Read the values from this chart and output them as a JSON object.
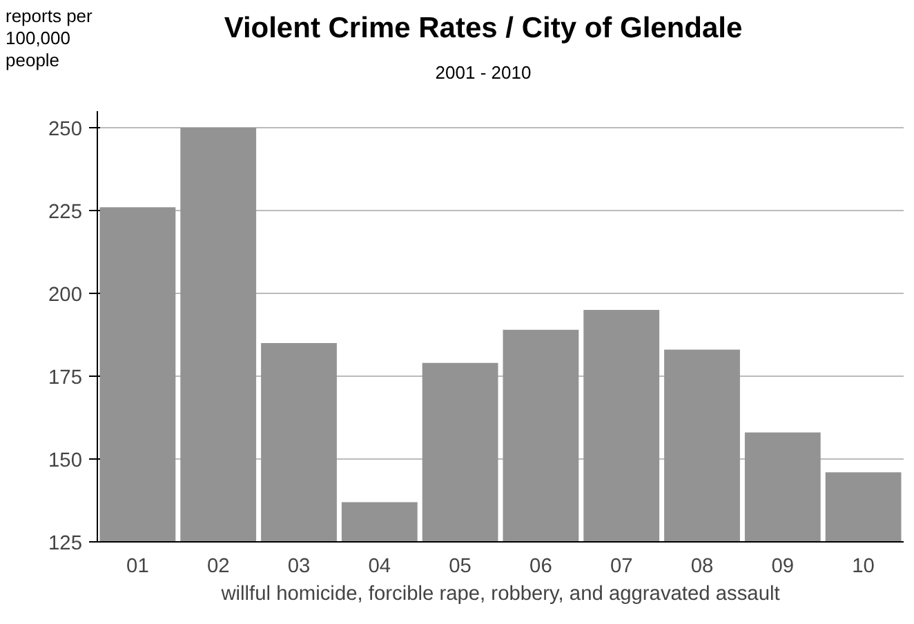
{
  "chart_data": {
    "type": "bar",
    "title": "Violent Crime Rates / City of Glendale",
    "subtitle": "2001 - 2010",
    "ylabel": "reports per\n100,000\npeople",
    "xlabel": "willful homicide, forcible rape, robbery, and aggravated assault",
    "categories": [
      "01",
      "02",
      "03",
      "04",
      "05",
      "06",
      "07",
      "08",
      "09",
      "10"
    ],
    "values": [
      226,
      250,
      185,
      137,
      179,
      189,
      195,
      183,
      158,
      146
    ],
    "color": "#939393",
    "ylim": [
      125,
      255
    ],
    "yticks": [
      125,
      150,
      175,
      200,
      225,
      250
    ],
    "grid": "y"
  }
}
